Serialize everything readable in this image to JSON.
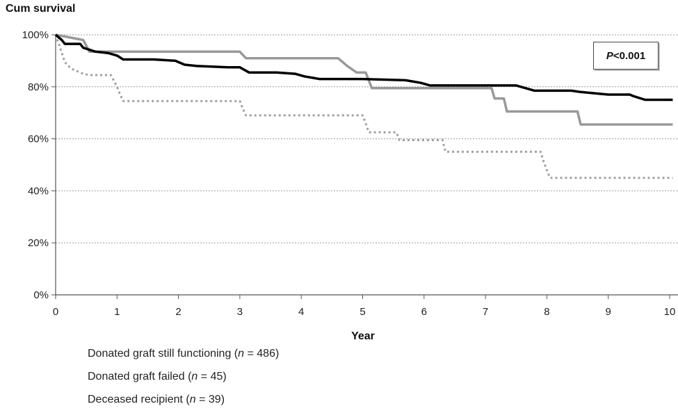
{
  "chart_data": {
    "type": "line",
    "title": "",
    "ylabel": "Cum survival",
    "xlabel": "Year",
    "ylim": [
      0,
      100
    ],
    "xlim": [
      0,
      10
    ],
    "yticks": [
      "0%",
      "20%",
      "40%",
      "60%",
      "80%",
      "100%"
    ],
    "ytick_values": [
      0,
      20,
      40,
      60,
      80,
      100
    ],
    "xticks": [
      "0",
      "1",
      "2",
      "3",
      "4",
      "5",
      "6",
      "7",
      "8",
      "9",
      "10"
    ],
    "xtick_values": [
      0,
      1,
      2,
      3,
      4,
      5,
      6,
      7,
      8,
      9,
      10
    ],
    "grid": "horizontal dotted",
    "legend_position": "bottom-left",
    "annotation": {
      "prefix": "P",
      "text": "<0.001",
      "position": "top-right"
    },
    "series": [
      {
        "name_main": "Donated graft still functioning (",
        "name_n": "n",
        "name_rest": " = 486)",
        "color": "#000000",
        "style": "solid",
        "x": [
          0,
          0.1,
          0.15,
          0.4,
          0.45,
          0.65,
          0.85,
          1.0,
          1.1,
          1.6,
          1.95,
          2.1,
          2.3,
          2.8,
          3.0,
          3.15,
          3.6,
          3.9,
          4.05,
          4.3,
          4.65,
          5.0,
          5.7,
          5.95,
          6.1,
          6.8,
          7.5,
          7.8,
          8.4,
          8.55,
          9.0,
          9.35,
          9.4,
          9.6,
          10.05
        ],
        "y": [
          100,
          98,
          96.5,
          96.5,
          95,
          93.5,
          93,
          92,
          90.5,
          90.5,
          90,
          88.5,
          88,
          87.5,
          87.5,
          85.5,
          85.5,
          85,
          84,
          83,
          83,
          83,
          82.5,
          81.5,
          80.5,
          80.5,
          80.5,
          78.5,
          78.5,
          78,
          77,
          77,
          76.5,
          75,
          75
        ]
      },
      {
        "name_main": "Donated graft failed (",
        "name_n": "n",
        "name_rest": " = 45)",
        "color": "#999999",
        "style": "solid",
        "x": [
          0,
          0.45,
          0.55,
          0.95,
          1.0,
          3.0,
          3.1,
          4.6,
          4.75,
          4.9,
          5.05,
          5.15,
          6.0,
          7.1,
          7.15,
          7.3,
          7.35,
          8.5,
          8.55,
          10.05
        ],
        "y": [
          100,
          98,
          93.5,
          93.5,
          93.5,
          93.5,
          91,
          91,
          88,
          85.5,
          85.5,
          79.5,
          79.5,
          79.5,
          75.5,
          75.5,
          70.5,
          70.5,
          65.5,
          65.5
        ]
      },
      {
        "name_main": "Deceased recipient (",
        "name_n": "n",
        "name_rest": " = 39)",
        "color": "#a0a0a0",
        "style": "dotted",
        "x": [
          0,
          0.08,
          0.15,
          0.25,
          0.45,
          0.55,
          0.9,
          1.0,
          1.05,
          1.1,
          3.0,
          3.05,
          3.1,
          5.0,
          5.05,
          5.1,
          5.55,
          5.6,
          6.3,
          6.35,
          7.9,
          7.95,
          8.05,
          10.05
        ],
        "y": [
          100,
          94.5,
          89.5,
          87,
          85,
          84.5,
          84.5,
          80,
          77,
          74.5,
          74.5,
          71.5,
          69,
          69,
          66,
          62.5,
          62.5,
          59.5,
          59.5,
          55,
          55,
          51,
          45,
          45
        ]
      }
    ]
  }
}
